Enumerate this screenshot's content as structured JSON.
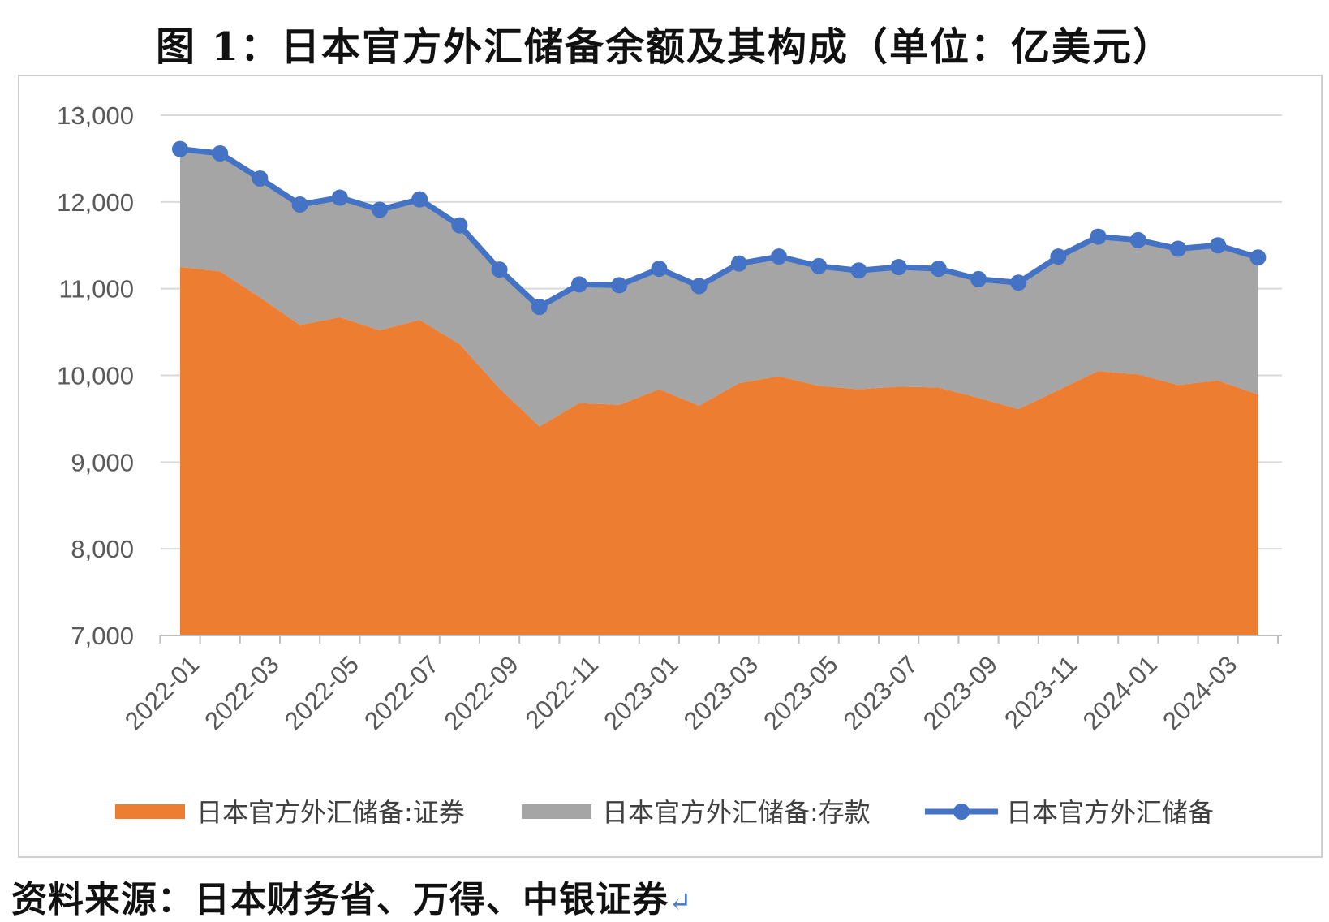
{
  "title": "图 1：日本官方外汇储备余额及其构成（单位：亿美元）",
  "source": "资料来源：日本财务省、万得、中银证券",
  "source_mark": "↵",
  "chart_data": {
    "type": "area",
    "title": "图 1：日本官方外汇储备余额及其构成（单位：亿美元）",
    "ylim": [
      7000,
      13000
    ],
    "yticks": [
      "13,000",
      "12,000",
      "11,000",
      "10,000",
      "9,000",
      "8,000",
      "7,000"
    ],
    "ytick_values": [
      13000,
      12000,
      11000,
      10000,
      9000,
      8000,
      7000
    ],
    "xtick_labels": [
      "2022-01",
      "2022-03",
      "2022-05",
      "2022-07",
      "2022-09",
      "2022-11",
      "2023-01",
      "2023-03",
      "2023-05",
      "2023-07",
      "2023-09",
      "2023-11",
      "2024-01",
      "2024-03"
    ],
    "x": [
      "2022-01",
      "2022-02",
      "2022-03",
      "2022-04",
      "2022-05",
      "2022-06",
      "2022-07",
      "2022-08",
      "2022-09",
      "2022-10",
      "2022-11",
      "2022-12",
      "2023-01",
      "2023-02",
      "2023-03",
      "2023-04",
      "2023-05",
      "2023-06",
      "2023-07",
      "2023-08",
      "2023-09",
      "2023-10",
      "2023-11",
      "2023-12",
      "2024-01",
      "2024-02",
      "2024-03",
      "2024-04"
    ],
    "grid": true,
    "legend_position": "bottom",
    "series": [
      {
        "name": "日本官方外汇储备:证券",
        "kind": "area",
        "color": "#ED7D31",
        "values": [
          11250,
          11200,
          10900,
          10580,
          10670,
          10520,
          10640,
          10360,
          9850,
          9410,
          9680,
          9660,
          9840,
          9650,
          9910,
          9990,
          9880,
          9840,
          9870,
          9860,
          9740,
          9610,
          9830,
          10050,
          10010,
          9890,
          9940,
          9780
        ]
      },
      {
        "name": "日本官方外汇储备:存款",
        "kind": "stacked-area",
        "color": "#A5A5A5",
        "values": [
          1360,
          1360,
          1370,
          1390,
          1380,
          1390,
          1390,
          1370,
          1370,
          1380,
          1370,
          1380,
          1390,
          1380,
          1380,
          1380,
          1380,
          1370,
          1380,
          1370,
          1370,
          1460,
          1540,
          1550,
          1550,
          1570,
          1560,
          1580
        ]
      },
      {
        "name": "日本官方外汇储备",
        "kind": "line",
        "color": "#4472C4",
        "values": [
          12610,
          12560,
          12270,
          11970,
          12050,
          11910,
          12030,
          11730,
          11220,
          10790,
          11050,
          11040,
          11230,
          11030,
          11290,
          11370,
          11260,
          11210,
          11250,
          11230,
          11110,
          11070,
          11370,
          11600,
          11560,
          11460,
          11500,
          11360
        ]
      }
    ]
  }
}
